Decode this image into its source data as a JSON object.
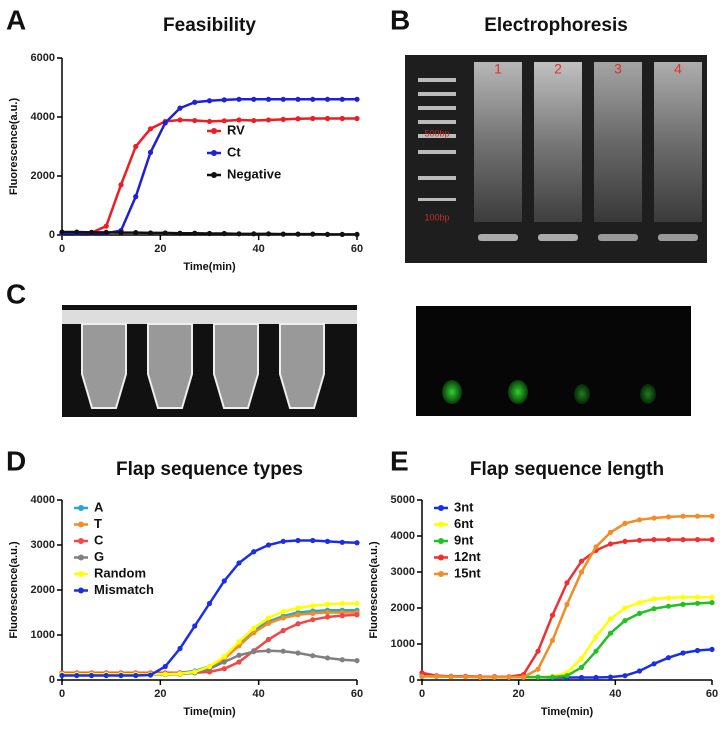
{
  "panel_letters": [
    "A",
    "B",
    "C",
    "D",
    "E"
  ],
  "gel": {
    "title": "Electrophoresis",
    "lanes": [
      "1",
      "2",
      "3",
      "4"
    ],
    "markers": [
      "500bp",
      "100bp"
    ]
  },
  "chart_data": [
    {
      "type": "line",
      "title": "Feasibility",
      "x_label": "Time(min)",
      "y_label": "Fluorescence(a.u.)",
      "x": [
        0,
        3,
        6,
        9,
        12,
        15,
        18,
        21,
        24,
        27,
        30,
        33,
        36,
        39,
        42,
        45,
        48,
        51,
        54,
        57,
        60
      ],
      "xlim": [
        0,
        60
      ],
      "xticks": [
        0,
        20,
        40,
        60
      ],
      "ylim": [
        0,
        6000
      ],
      "yticks": [
        0,
        2000,
        4000,
        6000
      ],
      "legend": "lower right",
      "series": [
        {
          "name": "RV",
          "color": "#ee1c25",
          "values": [
            80,
            80,
            80,
            300,
            1700,
            3000,
            3600,
            3850,
            3900,
            3880,
            3850,
            3870,
            3900,
            3880,
            3900,
            3920,
            3940,
            3950,
            3950,
            3950,
            3950
          ]
        },
        {
          "name": "Ct",
          "color": "#1f1fd6",
          "values": [
            60,
            60,
            60,
            60,
            150,
            1300,
            2800,
            3800,
            4300,
            4500,
            4550,
            4580,
            4600,
            4600,
            4600,
            4600,
            4600,
            4600,
            4600,
            4600,
            4600
          ]
        },
        {
          "name": "Negative",
          "color": "#111111",
          "values": [
            100,
            100,
            90,
            90,
            80,
            80,
            70,
            70,
            60,
            60,
            50,
            50,
            40,
            40,
            40,
            30,
            30,
            30,
            20,
            20,
            20
          ]
        }
      ]
    },
    {
      "type": "line",
      "title": "Flap sequence types",
      "x_label": "Time(min)",
      "y_label": "Fluorescence(a.u.)",
      "x": [
        0,
        3,
        6,
        9,
        12,
        15,
        18,
        21,
        24,
        27,
        30,
        33,
        36,
        39,
        42,
        45,
        48,
        51,
        54,
        57,
        60
      ],
      "xlim": [
        0,
        60
      ],
      "xticks": [
        0,
        20,
        40,
        60
      ],
      "ylim": [
        0,
        4000
      ],
      "yticks": [
        0,
        1000,
        2000,
        3000,
        4000
      ],
      "legend": "upper left",
      "series": [
        {
          "name": "A",
          "color": "#2aa6c8",
          "values": [
            150,
            150,
            150,
            150,
            150,
            150,
            150,
            150,
            160,
            200,
            300,
            500,
            800,
            1100,
            1300,
            1420,
            1500,
            1530,
            1550,
            1550,
            1550
          ]
        },
        {
          "name": "T",
          "color": "#f28c28",
          "values": [
            140,
            140,
            140,
            140,
            140,
            140,
            140,
            140,
            150,
            180,
            280,
            470,
            760,
            1050,
            1260,
            1380,
            1450,
            1480,
            1500,
            1500,
            1500
          ]
        },
        {
          "name": "C",
          "color": "#f04848",
          "values": [
            160,
            160,
            160,
            160,
            160,
            160,
            160,
            160,
            160,
            160,
            180,
            250,
            400,
            650,
            900,
            1100,
            1250,
            1340,
            1400,
            1430,
            1450
          ]
        },
        {
          "name": "G",
          "color": "#808080",
          "values": [
            120,
            120,
            120,
            120,
            120,
            120,
            120,
            120,
            130,
            160,
            250,
            400,
            550,
            630,
            650,
            640,
            600,
            540,
            490,
            450,
            430
          ]
        },
        {
          "name": "Random",
          "color": "#ffff00",
          "values": [
            130,
            130,
            130,
            130,
            130,
            130,
            130,
            130,
            140,
            180,
            300,
            520,
            850,
            1150,
            1380,
            1520,
            1600,
            1650,
            1680,
            1700,
            1700
          ]
        },
        {
          "name": "Mismatch",
          "color": "#1a2ee8",
          "values": [
            100,
            100,
            100,
            100,
            100,
            100,
            110,
            300,
            700,
            1200,
            1700,
            2200,
            2600,
            2850,
            3000,
            3080,
            3100,
            3100,
            3080,
            3060,
            3050
          ]
        }
      ]
    },
    {
      "type": "line",
      "title": "Flap sequence length",
      "x_label": "Time(min)",
      "y_label": "Fluorescence(a.u.)",
      "x": [
        0,
        3,
        6,
        9,
        12,
        15,
        18,
        21,
        24,
        27,
        30,
        33,
        36,
        39,
        42,
        45,
        48,
        51,
        54,
        57,
        60
      ],
      "xlim": [
        0,
        60
      ],
      "xticks": [
        0,
        20,
        40,
        60
      ],
      "ylim": [
        0,
        5000
      ],
      "yticks": [
        0,
        1000,
        2000,
        3000,
        4000,
        5000
      ],
      "legend": "upper left",
      "series": [
        {
          "name": "3nt",
          "color": "#1a2ee8",
          "values": [
            120,
            110,
            100,
            100,
            90,
            90,
            80,
            80,
            80,
            70,
            70,
            70,
            70,
            80,
            120,
            250,
            450,
            620,
            750,
            820,
            850
          ]
        },
        {
          "name": "6nt",
          "color": "#ffff00",
          "values": [
            100,
            100,
            90,
            90,
            80,
            80,
            80,
            80,
            80,
            100,
            200,
            600,
            1200,
            1700,
            2000,
            2150,
            2250,
            2280,
            2300,
            2300,
            2300
          ]
        },
        {
          "name": "9nt",
          "color": "#22c022",
          "values": [
            100,
            100,
            90,
            90,
            80,
            80,
            80,
            80,
            80,
            80,
            120,
            350,
            800,
            1300,
            1650,
            1850,
            1980,
            2050,
            2100,
            2130,
            2150
          ]
        },
        {
          "name": "12nt",
          "color": "#f03030",
          "values": [
            200,
            120,
            100,
            100,
            90,
            90,
            90,
            150,
            800,
            1800,
            2700,
            3300,
            3600,
            3780,
            3850,
            3880,
            3900,
            3900,
            3900,
            3900,
            3900
          ]
        },
        {
          "name": "15nt",
          "color": "#f28c28",
          "values": [
            100,
            100,
            90,
            90,
            80,
            80,
            80,
            80,
            300,
            1100,
            2100,
            3000,
            3700,
            4100,
            4350,
            4450,
            4500,
            4530,
            4550,
            4550,
            4550
          ]
        }
      ]
    }
  ]
}
